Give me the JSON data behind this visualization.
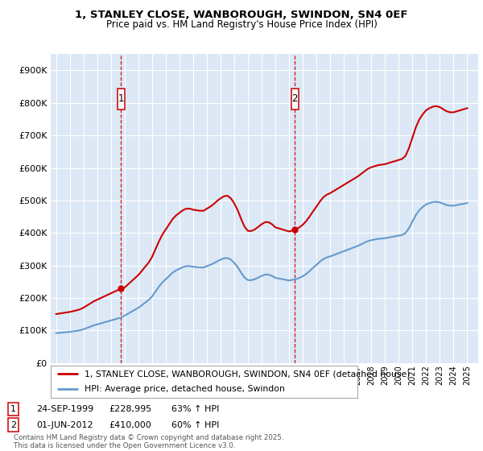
{
  "title_line1": "1, STANLEY CLOSE, WANBOROUGH, SWINDON, SN4 0EF",
  "title_line2": "Price paid vs. HM Land Registry's House Price Index (HPI)",
  "bg_color": "#dce8f5",
  "yticks": [
    0,
    100000,
    200000,
    300000,
    400000,
    500000,
    600000,
    700000,
    800000,
    900000
  ],
  "ytick_labels": [
    "£0",
    "£100K",
    "£200K",
    "£300K",
    "£400K",
    "£500K",
    "£600K",
    "£700K",
    "£800K",
    "£900K"
  ],
  "xmin": 1994.6,
  "xmax": 2025.8,
  "ymin": 0,
  "ymax": 950000,
  "red_color": "#cc0000",
  "blue_color": "#6699cc",
  "sale1_x": 1999.73,
  "sale1_y": 228995,
  "sale2_x": 2012.42,
  "sale2_y": 410000,
  "sale1_label": "1",
  "sale2_label": "2",
  "sale1_date": "24-SEP-1999",
  "sale1_price": "£228,995",
  "sale1_hpi": "63% ↑ HPI",
  "sale2_date": "01-JUN-2012",
  "sale2_price": "£410,000",
  "sale2_hpi": "60% ↑ HPI",
  "legend_line1": "1, STANLEY CLOSE, WANBOROUGH, SWINDON, SN4 0EF (detached house)",
  "legend_line2": "HPI: Average price, detached house, Swindon",
  "footer": "Contains HM Land Registry data © Crown copyright and database right 2025.\nThis data is licensed under the Open Government Licence v3.0.",
  "hpi_data_x": [
    1995.0,
    1995.25,
    1995.5,
    1995.75,
    1996.0,
    1996.25,
    1996.5,
    1996.75,
    1997.0,
    1997.25,
    1997.5,
    1997.75,
    1998.0,
    1998.25,
    1998.5,
    1998.75,
    1999.0,
    1999.25,
    1999.5,
    1999.75,
    2000.0,
    2000.25,
    2000.5,
    2000.75,
    2001.0,
    2001.25,
    2001.5,
    2001.75,
    2002.0,
    2002.25,
    2002.5,
    2002.75,
    2003.0,
    2003.25,
    2003.5,
    2003.75,
    2004.0,
    2004.25,
    2004.5,
    2004.75,
    2005.0,
    2005.25,
    2005.5,
    2005.75,
    2006.0,
    2006.25,
    2006.5,
    2006.75,
    2007.0,
    2007.25,
    2007.5,
    2007.75,
    2008.0,
    2008.25,
    2008.5,
    2008.75,
    2009.0,
    2009.25,
    2009.5,
    2009.75,
    2010.0,
    2010.25,
    2010.5,
    2010.75,
    2011.0,
    2011.25,
    2011.5,
    2011.75,
    2012.0,
    2012.25,
    2012.5,
    2012.75,
    2013.0,
    2013.25,
    2013.5,
    2013.75,
    2014.0,
    2014.25,
    2014.5,
    2014.75,
    2015.0,
    2015.25,
    2015.5,
    2015.75,
    2016.0,
    2016.25,
    2016.5,
    2016.75,
    2017.0,
    2017.25,
    2017.5,
    2017.75,
    2018.0,
    2018.25,
    2018.5,
    2018.75,
    2019.0,
    2019.25,
    2019.5,
    2019.75,
    2020.0,
    2020.25,
    2020.5,
    2020.75,
    2021.0,
    2021.25,
    2021.5,
    2021.75,
    2022.0,
    2022.25,
    2022.5,
    2022.75,
    2023.0,
    2023.25,
    2023.5,
    2023.75,
    2024.0,
    2024.25,
    2024.5,
    2024.75,
    2025.0
  ],
  "hpi_data_y": [
    92000,
    93000,
    94000,
    95000,
    96000,
    97500,
    99000,
    101000,
    104000,
    108000,
    112000,
    116000,
    119000,
    122000,
    125000,
    128000,
    131000,
    134000,
    137000,
    140000,
    146000,
    152000,
    158000,
    164000,
    170000,
    178000,
    186000,
    194000,
    205000,
    220000,
    235000,
    248000,
    258000,
    268000,
    278000,
    285000,
    290000,
    295000,
    298000,
    298000,
    296000,
    295000,
    294000,
    294000,
    298000,
    302000,
    307000,
    313000,
    318000,
    322000,
    323000,
    318000,
    308000,
    295000,
    278000,
    263000,
    255000,
    255000,
    258000,
    263000,
    268000,
    272000,
    272000,
    268000,
    262000,
    260000,
    258000,
    256000,
    254000,
    256000,
    258000,
    262000,
    267000,
    274000,
    283000,
    293000,
    302000,
    312000,
    320000,
    325000,
    328000,
    332000,
    336000,
    340000,
    344000,
    348000,
    352000,
    356000,
    360000,
    365000,
    370000,
    375000,
    378000,
    380000,
    382000,
    383000,
    384000,
    386000,
    388000,
    390000,
    392000,
    394000,
    400000,
    415000,
    435000,
    455000,
    470000,
    480000,
    488000,
    492000,
    495000,
    496000,
    494000,
    490000,
    486000,
    484000,
    484000,
    486000,
    488000,
    490000,
    492000
  ]
}
